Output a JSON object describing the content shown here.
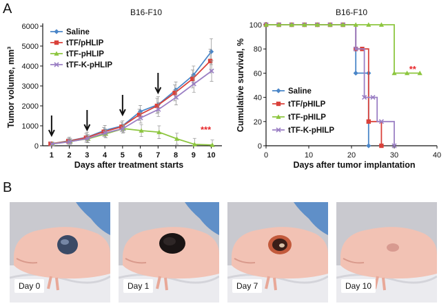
{
  "panel_a_label": "A",
  "panel_b_label": "B",
  "colors": {
    "saline": "#4a86c8",
    "ttf_phlip": "#d9413a",
    "ttf_phlip_green": "#8dc63f",
    "ttf_k_phlip": "#9b7fc4",
    "significance": "#e8262a",
    "arrow": "#111111"
  },
  "chart_data": [
    {
      "type": "line",
      "title": "B16-F10",
      "xlabel": "Days after treatment starts",
      "ylabel": "Tumor volume, mm³",
      "xlim": [
        1,
        10
      ],
      "ylim": [
        0,
        6000
      ],
      "x_ticks": [
        1,
        2,
        3,
        4,
        5,
        6,
        7,
        8,
        9,
        10
      ],
      "y_ticks": [
        0,
        1000,
        2000,
        3000,
        4000,
        5000,
        6000
      ],
      "x": [
        1,
        2,
        3,
        4,
        5,
        6,
        7,
        8,
        9,
        10
      ],
      "legend_position": "top-left",
      "series": [
        {
          "name": "Saline",
          "color_key": "saline",
          "marker": "diamond",
          "values": [
            100,
            250,
            430,
            770,
            1000,
            1720,
            2060,
            2800,
            3550,
            4720
          ],
          "errors": [
            50,
            180,
            250,
            250,
            250,
            300,
            400,
            400,
            450,
            650
          ]
        },
        {
          "name": "tTF/pHLIP",
          "color_key": "ttf_phlip",
          "marker": "square",
          "values": [
            100,
            230,
            400,
            700,
            950,
            1550,
            2000,
            2650,
            3350,
            4250
          ],
          "errors": [
            40,
            150,
            220,
            220,
            240,
            280,
            380,
            400,
            450,
            600
          ]
        },
        {
          "name": "tTF-pHLIP",
          "color_key": "ttf_phlip_green",
          "marker": "triangle",
          "values": [
            100,
            220,
            350,
            600,
            860,
            760,
            680,
            350,
            70,
            40
          ],
          "errors": [
            40,
            150,
            200,
            200,
            180,
            300,
            320,
            280,
            300,
            250
          ]
        },
        {
          "name": "tTF-K-pHLIP",
          "color_key": "ttf_k_phlip",
          "marker": "x",
          "values": [
            90,
            200,
            360,
            640,
            860,
            1400,
            1820,
            2430,
            3100,
            3750
          ],
          "errors": [
            40,
            130,
            200,
            200,
            220,
            260,
            350,
            380,
            420,
            520
          ]
        }
      ],
      "treatment_arrow_days": [
        1,
        3,
        5,
        7
      ],
      "annotations": [
        {
          "text": "***",
          "x": 10,
          "y": 800
        }
      ]
    },
    {
      "type": "line",
      "step": true,
      "title": "B16-F10",
      "xlabel": "Days after tumor implantation",
      "ylabel": "Cumulative survival, %",
      "xlim": [
        0,
        40
      ],
      "ylim": [
        0,
        100
      ],
      "x_ticks": [
        0,
        10,
        20,
        30,
        40
      ],
      "y_ticks": [
        0,
        20,
        40,
        60,
        80,
        100
      ],
      "legend_position": "bottom-left",
      "series": [
        {
          "name": "Saline",
          "color_key": "saline",
          "marker": "diamond",
          "steps": [
            [
              0,
              100
            ],
            [
              21,
              100
            ],
            [
              21,
              60
            ],
            [
              24,
              60
            ],
            [
              24,
              0
            ]
          ],
          "markers": [
            [
              0,
              100
            ],
            [
              3,
              100
            ],
            [
              6,
              100
            ],
            [
              9,
              100
            ],
            [
              12,
              100
            ],
            [
              15,
              100
            ],
            [
              18,
              100
            ],
            [
              21,
              60
            ],
            [
              24,
              60
            ],
            [
              24,
              0
            ]
          ]
        },
        {
          "name": "tTF/pHILP",
          "color_key": "ttf_phlip",
          "marker": "square",
          "steps": [
            [
              0,
              100
            ],
            [
              21,
              100
            ],
            [
              21,
              80
            ],
            [
              24,
              80
            ],
            [
              24,
              20
            ],
            [
              27,
              20
            ],
            [
              27,
              0
            ]
          ],
          "markers": [
            [
              0,
              100
            ],
            [
              3,
              100
            ],
            [
              6,
              100
            ],
            [
              9,
              100
            ],
            [
              12,
              100
            ],
            [
              15,
              100
            ],
            [
              18,
              100
            ],
            [
              21,
              80
            ],
            [
              22.5,
              80
            ],
            [
              24,
              20
            ],
            [
              27,
              0
            ]
          ]
        },
        {
          "name": "tTF-pHILP",
          "color_key": "ttf_phlip_green",
          "marker": "triangle",
          "steps": [
            [
              0,
              100
            ],
            [
              30,
              100
            ],
            [
              30,
              60
            ],
            [
              36,
              60
            ]
          ],
          "markers": [
            [
              0,
              100
            ],
            [
              3,
              100
            ],
            [
              6,
              100
            ],
            [
              9,
              100
            ],
            [
              12,
              100
            ],
            [
              15,
              100
            ],
            [
              18,
              100
            ],
            [
              21,
              100
            ],
            [
              24,
              100
            ],
            [
              27,
              100
            ],
            [
              30,
              60
            ],
            [
              33,
              60
            ],
            [
              36,
              60
            ]
          ]
        },
        {
          "name": "tTF-K-pHILP",
          "color_key": "ttf_k_phlip",
          "marker": "x",
          "steps": [
            [
              0,
              100
            ],
            [
              21,
              100
            ],
            [
              21,
              80
            ],
            [
              23,
              80
            ],
            [
              23,
              40
            ],
            [
              26,
              40
            ],
            [
              26,
              20
            ],
            [
              30,
              20
            ],
            [
              30,
              0
            ]
          ],
          "markers": [
            [
              0,
              100
            ],
            [
              3,
              100
            ],
            [
              6,
              100
            ],
            [
              9,
              100
            ],
            [
              12,
              100
            ],
            [
              15,
              100
            ],
            [
              18,
              100
            ],
            [
              21,
              80
            ],
            [
              23,
              40
            ],
            [
              25,
              40
            ],
            [
              27,
              20
            ],
            [
              30,
              0
            ]
          ]
        }
      ],
      "annotations": [
        {
          "text": "**",
          "x": 34,
          "y": 63
        }
      ]
    }
  ],
  "photos": [
    {
      "label": "Day 0",
      "lesion": "bluish"
    },
    {
      "label": "Day 1",
      "lesion": "black"
    },
    {
      "label": "Day 7",
      "lesion": "crusted"
    },
    {
      "label": "Day 10",
      "lesion": "healed"
    }
  ]
}
